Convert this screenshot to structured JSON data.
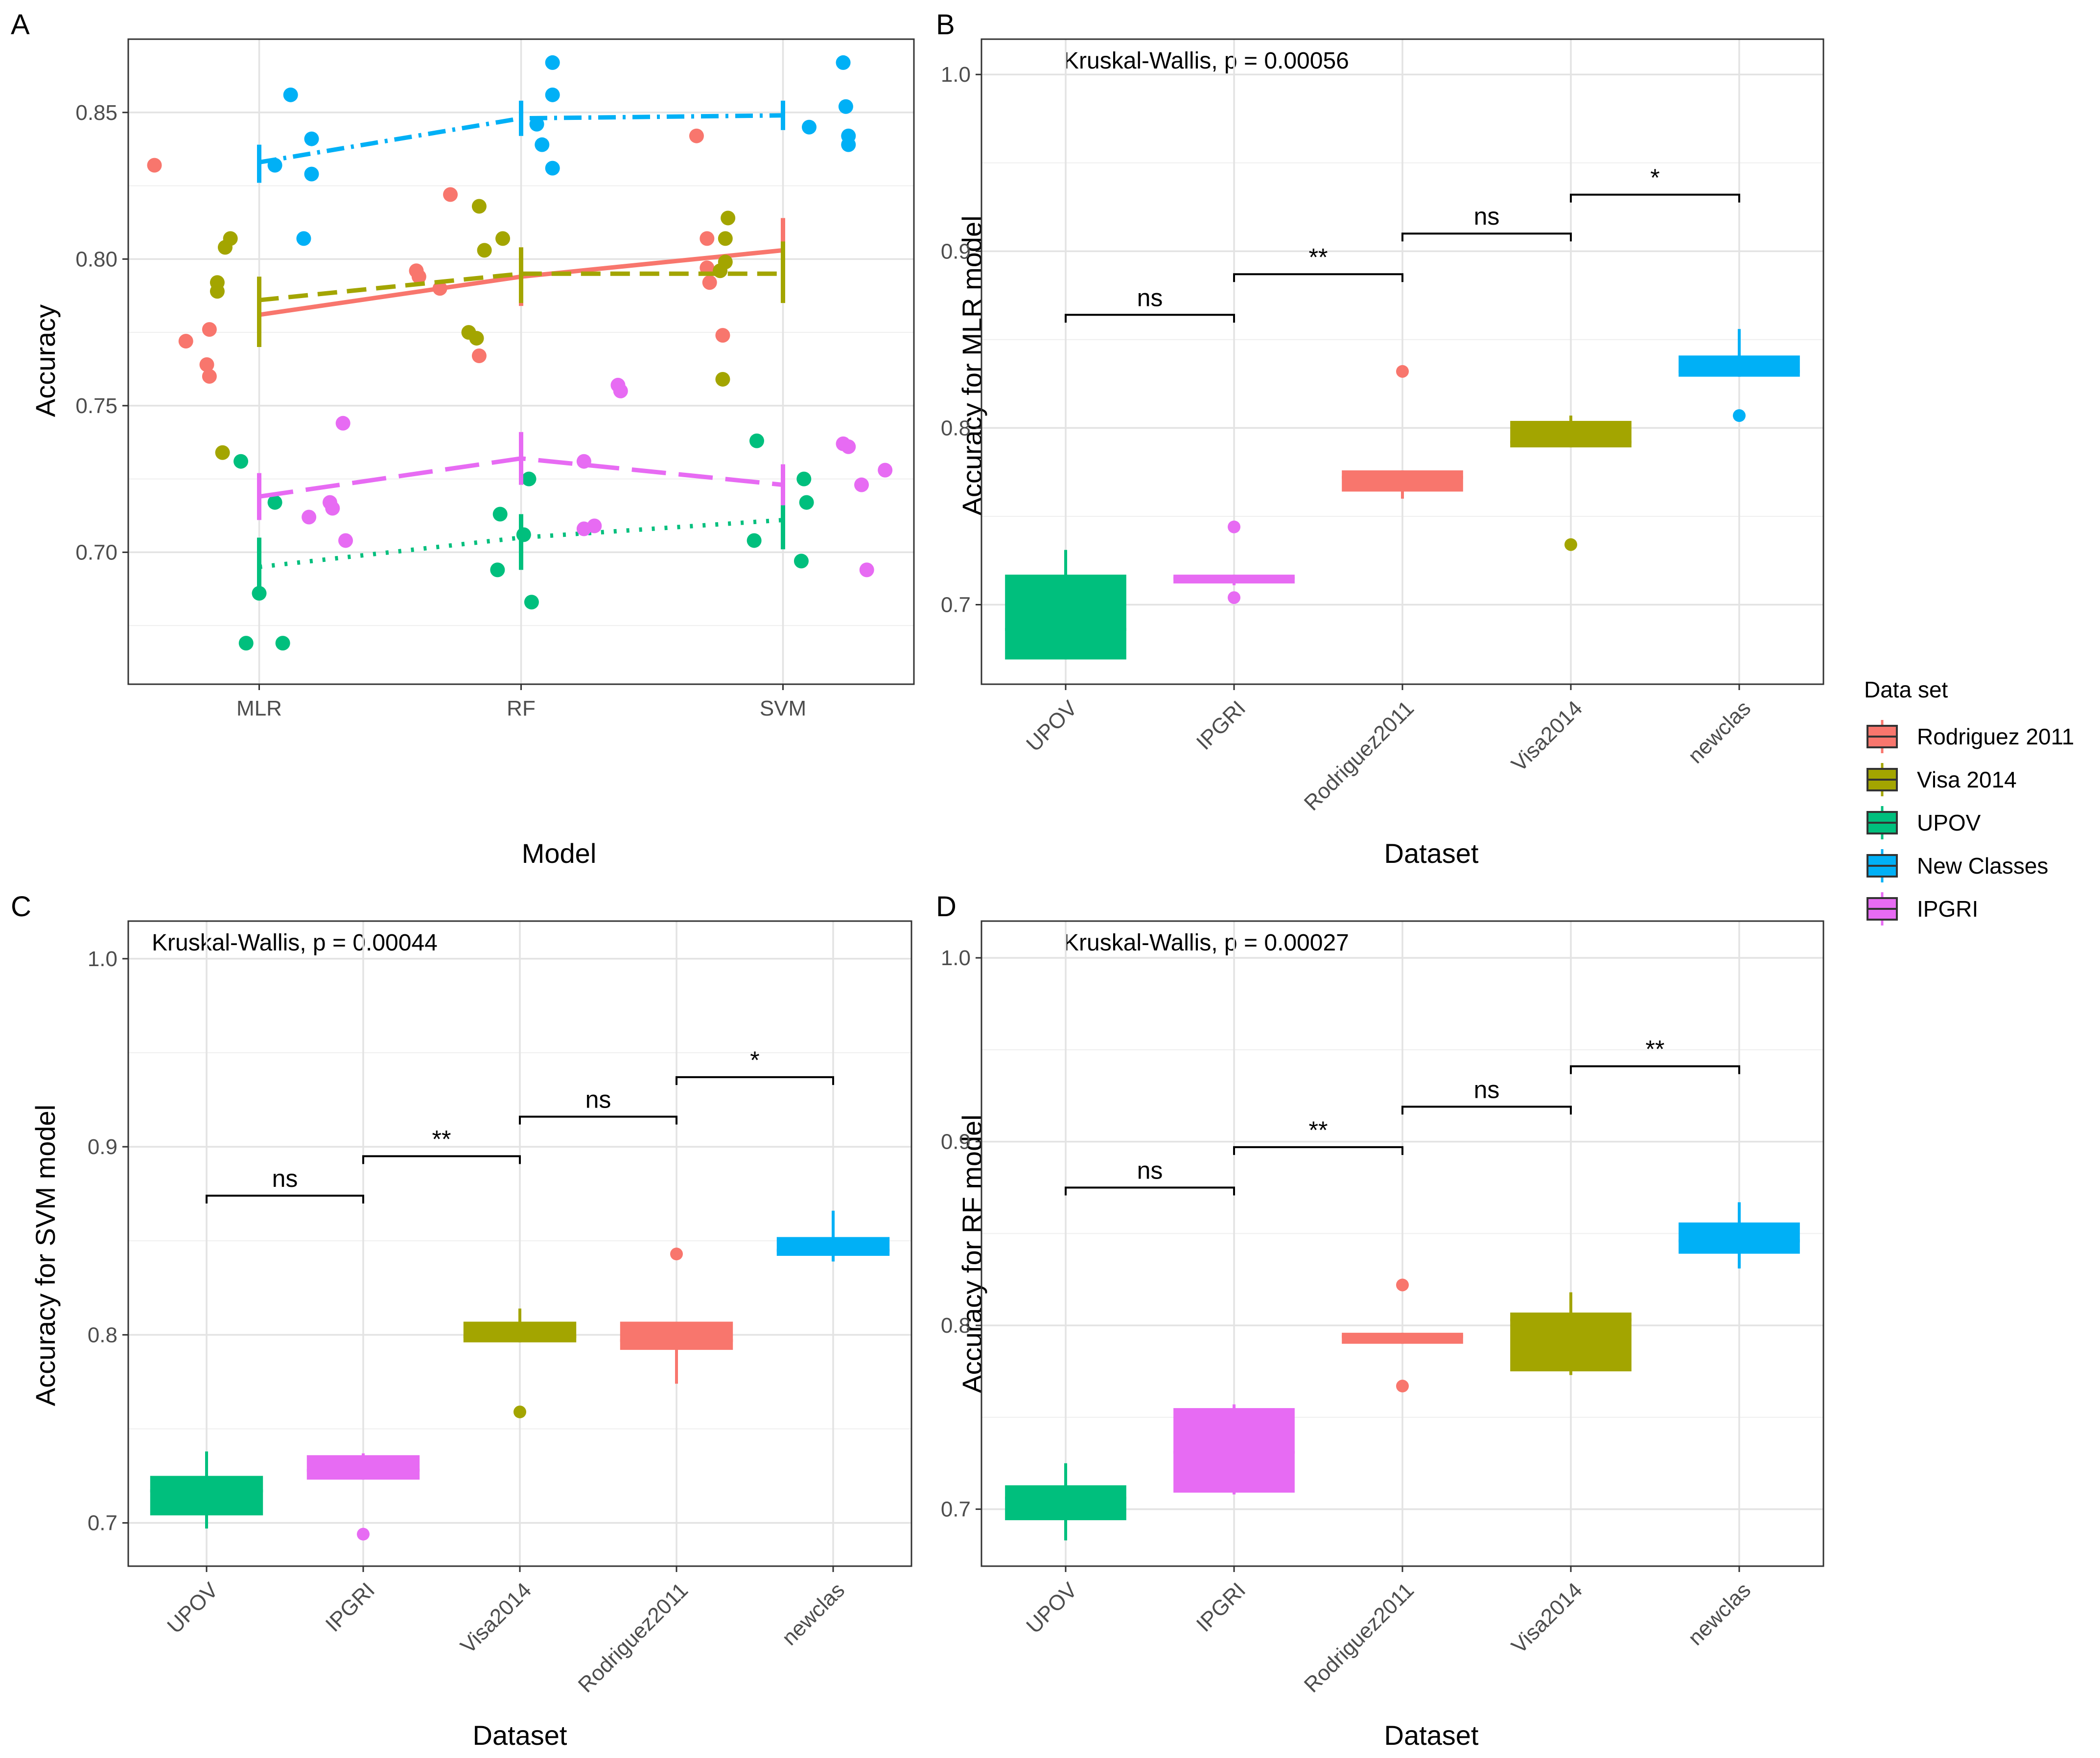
{
  "colors": {
    "Rodriguez2011": "#F8766D",
    "Visa2014": "#A3A500",
    "UPOV": "#00BF7D",
    "newclas": "#00B0F6",
    "IPGRI": "#E76BF3"
  },
  "legend": {
    "title": "Data set",
    "entries": [
      {
        "key": "Rodriguez2011",
        "label": "Rodriguez 2011"
      },
      {
        "key": "Visa2014",
        "label": "Visa 2014"
      },
      {
        "key": "UPOV",
        "label": "UPOV"
      },
      {
        "key": "newclas",
        "label": "New Classes"
      },
      {
        "key": "IPGRI",
        "label": "IPGRI"
      }
    ]
  },
  "chart_data": [
    {
      "panel": "A",
      "type": "scatter",
      "xlabel": "Model",
      "ylabel": "Accuracy",
      "categories": [
        "MLR",
        "RF",
        "SVM"
      ],
      "ylim": [
        0.655,
        0.875
      ],
      "yticks": [
        0.7,
        0.75,
        0.8,
        0.85
      ],
      "ytick_labels": [
        "0.70",
        "0.75",
        "0.80",
        "0.85"
      ],
      "series": [
        {
          "key": "Rodriguez2011",
          "means": [
            0.781,
            0.794,
            0.803
          ],
          "err": [
            [
              0.77,
              0.792
            ],
            [
              0.784,
              0.804
            ],
            [
              0.792,
              0.814
            ]
          ],
          "points": [
            [
              0.6,
              0.832
            ],
            [
              0.72,
              0.772
            ],
            [
              0.81,
              0.776
            ],
            [
              0.8,
              0.764
            ],
            [
              0.81,
              0.76
            ],
            [
              1.61,
              0.794
            ],
            [
              1.6,
              0.796
            ],
            [
              1.69,
              0.79
            ],
            [
              1.73,
              0.822
            ],
            [
              1.84,
              0.767
            ],
            [
              2.67,
              0.842
            ],
            [
              2.71,
              0.807
            ],
            [
              2.71,
              0.797
            ],
            [
              2.72,
              0.792
            ],
            [
              2.77,
              0.774
            ]
          ]
        },
        {
          "key": "Visa2014",
          "means": [
            0.786,
            0.795,
            0.795
          ],
          "err": [
            [
              0.77,
              0.794
            ],
            [
              0.785,
              0.804
            ],
            [
              0.785,
              0.806
            ]
          ],
          "points": [
            [
              0.84,
              0.792
            ],
            [
              0.84,
              0.789
            ],
            [
              0.87,
              0.804
            ],
            [
              0.89,
              0.807
            ],
            [
              0.86,
              0.734
            ],
            [
              1.8,
              0.775
            ],
            [
              1.83,
              0.773
            ],
            [
              1.84,
              0.818
            ],
            [
              1.86,
              0.803
            ],
            [
              1.93,
              0.807
            ],
            [
              2.76,
              0.796
            ],
            [
              2.79,
              0.814
            ],
            [
              2.78,
              0.807
            ],
            [
              2.78,
              0.799
            ],
            [
              2.77,
              0.759
            ]
          ]
        },
        {
          "key": "UPOV",
          "means": [
            0.695,
            0.705,
            0.711
          ],
          "err": [
            [
              0.684,
              0.705
            ],
            [
              0.694,
              0.713
            ],
            [
              0.701,
              0.721
            ]
          ],
          "points": [
            [
              0.93,
              0.731
            ],
            [
              1.0,
              0.686
            ],
            [
              0.95,
              0.669
            ],
            [
              1.06,
              0.717
            ],
            [
              1.09,
              0.669
            ],
            [
              1.92,
              0.713
            ],
            [
              1.91,
              0.694
            ],
            [
              2.01,
              0.706
            ],
            [
              2.03,
              0.725
            ],
            [
              2.04,
              0.683
            ],
            [
              2.9,
              0.738
            ],
            [
              2.89,
              0.704
            ],
            [
              3.07,
              0.697
            ],
            [
              3.08,
              0.725
            ],
            [
              3.09,
              0.717
            ]
          ]
        },
        {
          "key": "newclas",
          "means": [
            0.833,
            0.848,
            0.849
          ],
          "err": [
            [
              0.826,
              0.839
            ],
            [
              0.842,
              0.854
            ],
            [
              0.844,
              0.854
            ]
          ],
          "points": [
            [
              1.06,
              0.832
            ],
            [
              1.12,
              0.856
            ],
            [
              1.2,
              0.841
            ],
            [
              1.2,
              0.829
            ],
            [
              1.17,
              0.807
            ],
            [
              2.06,
              0.846
            ],
            [
              2.08,
              0.839
            ],
            [
              2.12,
              0.831
            ],
            [
              2.12,
              0.856
            ],
            [
              2.12,
              0.867
            ],
            [
              3.1,
              0.845
            ],
            [
              3.23,
              0.867
            ],
            [
              3.24,
              0.852
            ],
            [
              3.25,
              0.842
            ],
            [
              3.25,
              0.839
            ]
          ]
        },
        {
          "key": "IPGRI",
          "means": [
            0.719,
            0.732,
            0.723
          ],
          "err": [
            [
              0.711,
              0.727
            ],
            [
              0.723,
              0.741
            ],
            [
              0.716,
              0.73
            ]
          ],
          "points": [
            [
              1.19,
              0.712
            ],
            [
              1.27,
              0.717
            ],
            [
              1.28,
              0.715
            ],
            [
              1.32,
              0.744
            ],
            [
              1.33,
              0.704
            ],
            [
              2.24,
              0.708
            ],
            [
              2.28,
              0.709
            ],
            [
              2.24,
              0.731
            ],
            [
              2.37,
              0.757
            ],
            [
              2.38,
              0.755
            ],
            [
              3.23,
              0.737
            ],
            [
              3.25,
              0.736
            ],
            [
              3.3,
              0.723
            ],
            [
              3.32,
              0.694
            ],
            [
              3.39,
              0.728
            ]
          ]
        }
      ]
    },
    {
      "panel": "B",
      "type": "box",
      "annotation": "Kruskal-Wallis, p = 0.00056",
      "xlabel": "Dataset",
      "ylabel": "Accuracy for MLR model",
      "ylim": [
        0.655,
        1.02
      ],
      "yticks": [
        0.7,
        0.8,
        0.9,
        1.0
      ],
      "ytick_labels": [
        "0.7",
        "0.8",
        "0.9",
        "1.0"
      ],
      "categories": [
        "UPOV",
        "IPGRI",
        "Rodriguez2011",
        "Visa2014",
        "newclas"
      ],
      "boxes": [
        {
          "key": "UPOV",
          "min": 0.669,
          "q1": 0.669,
          "median": 0.686,
          "q3": 0.717,
          "max": 0.731,
          "outliers": []
        },
        {
          "key": "IPGRI",
          "min": 0.711,
          "q1": 0.712,
          "median": 0.715,
          "q3": 0.717,
          "max": 0.717,
          "outliers": [
            0.744,
            0.704
          ]
        },
        {
          "key": "Rodriguez2011",
          "min": 0.76,
          "q1": 0.764,
          "median": 0.772,
          "q3": 0.776,
          "max": 0.776,
          "outliers": [
            0.832
          ]
        },
        {
          "key": "Visa2014",
          "min": 0.789,
          "q1": 0.789,
          "median": 0.792,
          "q3": 0.804,
          "max": 0.807,
          "outliers": [
            0.734
          ]
        },
        {
          "key": "newclas",
          "min": 0.829,
          "q1": 0.829,
          "median": 0.832,
          "q3": 0.841,
          "max": 0.856,
          "outliers": [
            0.807
          ]
        }
      ],
      "comparisons": [
        {
          "from": 0,
          "to": 1,
          "y": 0.864,
          "label": "ns"
        },
        {
          "from": 1,
          "to": 2,
          "y": 0.887,
          "label": "**"
        },
        {
          "from": 2,
          "to": 3,
          "y": 0.91,
          "label": "ns"
        },
        {
          "from": 3,
          "to": 4,
          "y": 0.932,
          "label": "*"
        }
      ]
    },
    {
      "panel": "C",
      "type": "box",
      "annotation": "Kruskal-Wallis, p = 0.00044",
      "xlabel": "Dataset",
      "ylabel": "Accuracy for SVM model",
      "ylim": [
        0.677,
        1.02
      ],
      "yticks": [
        0.7,
        0.8,
        0.9,
        1.0
      ],
      "ytick_labels": [
        "0.7",
        "0.8",
        "0.9",
        "1.0"
      ],
      "categories": [
        "UPOV",
        "IPGRI",
        "Visa2014",
        "Rodriguez2011",
        "newclas"
      ],
      "boxes": [
        {
          "key": "UPOV",
          "min": 0.697,
          "q1": 0.704,
          "median": 0.717,
          "q3": 0.725,
          "max": 0.738,
          "outliers": []
        },
        {
          "key": "IPGRI",
          "min": 0.723,
          "q1": 0.723,
          "median": 0.728,
          "q3": 0.736,
          "max": 0.737,
          "outliers": [
            0.694
          ]
        },
        {
          "key": "Visa2014",
          "min": 0.796,
          "q1": 0.796,
          "median": 0.799,
          "q3": 0.807,
          "max": 0.814,
          "outliers": [
            0.759
          ]
        },
        {
          "key": "Rodriguez2011",
          "min": 0.774,
          "q1": 0.792,
          "median": 0.797,
          "q3": 0.807,
          "max": 0.807,
          "outliers": [
            0.843
          ]
        },
        {
          "key": "newclas",
          "min": 0.839,
          "q1": 0.842,
          "median": 0.845,
          "q3": 0.852,
          "max": 0.866,
          "outliers": []
        }
      ],
      "comparisons": [
        {
          "from": 0,
          "to": 1,
          "y": 0.874,
          "label": "ns"
        },
        {
          "from": 1,
          "to": 2,
          "y": 0.895,
          "label": "**"
        },
        {
          "from": 2,
          "to": 3,
          "y": 0.916,
          "label": "ns"
        },
        {
          "from": 3,
          "to": 4,
          "y": 0.937,
          "label": "*"
        }
      ]
    },
    {
      "panel": "D",
      "type": "box",
      "annotation": "Kruskal-Wallis, p = 0.00027",
      "xlabel": "Dataset",
      "ylabel": "Accuracy for RF model",
      "ylim": [
        0.669,
        1.02
      ],
      "yticks": [
        0.7,
        0.8,
        0.9,
        1.0
      ],
      "ytick_labels": [
        "0.7",
        "0.8",
        "0.9",
        "1.0"
      ],
      "categories": [
        "UPOV",
        "IPGRI",
        "Rodriguez2011",
        "Visa2014",
        "newclas"
      ],
      "boxes": [
        {
          "key": "UPOV",
          "min": 0.683,
          "q1": 0.694,
          "median": 0.706,
          "q3": 0.713,
          "max": 0.725,
          "outliers": []
        },
        {
          "key": "IPGRI",
          "min": 0.708,
          "q1": 0.709,
          "median": 0.731,
          "q3": 0.755,
          "max": 0.757,
          "outliers": []
        },
        {
          "key": "Rodriguez2011",
          "min": 0.79,
          "q1": 0.79,
          "median": 0.794,
          "q3": 0.796,
          "max": 0.796,
          "outliers": [
            0.822,
            0.767
          ]
        },
        {
          "key": "Visa2014",
          "min": 0.773,
          "q1": 0.775,
          "median": 0.803,
          "q3": 0.807,
          "max": 0.818,
          "outliers": []
        },
        {
          "key": "newclas",
          "min": 0.831,
          "q1": 0.839,
          "median": 0.846,
          "q3": 0.856,
          "max": 0.867,
          "outliers": []
        }
      ],
      "comparisons": [
        {
          "from": 0,
          "to": 1,
          "y": 0.875,
          "label": "ns"
        },
        {
          "from": 1,
          "to": 2,
          "y": 0.897,
          "label": "**"
        },
        {
          "from": 2,
          "to": 3,
          "y": 0.919,
          "label": "ns"
        },
        {
          "from": 3,
          "to": 4,
          "y": 0.941,
          "label": "**"
        }
      ]
    }
  ]
}
